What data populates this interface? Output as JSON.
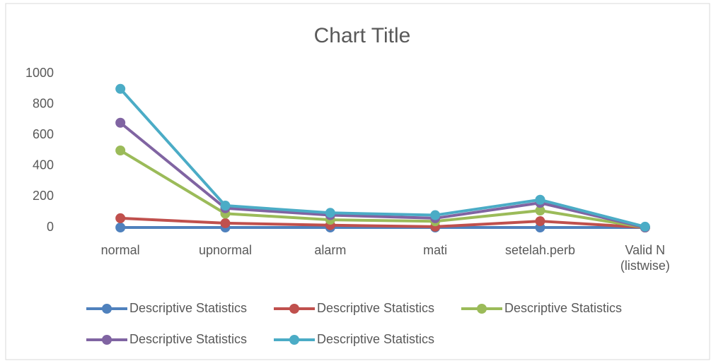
{
  "chart_data": {
    "type": "line",
    "title": "Chart Title",
    "categories": [
      "normal",
      "upnormal",
      "alarm",
      "mati",
      "setelah.perb",
      "Valid N (listwise)"
    ],
    "series": [
      {
        "name": "Descriptive Statistics",
        "color": "#4f81bd",
        "values": [
          0,
          0,
          0,
          0,
          0,
          0
        ]
      },
      {
        "name": "Descriptive Statistics",
        "color": "#c0504d",
        "values": [
          60,
          28,
          15,
          5,
          41,
          0
        ]
      },
      {
        "name": "Descriptive Statistics",
        "color": "#9bbb59",
        "values": [
          500,
          90,
          50,
          40,
          110,
          0
        ]
      },
      {
        "name": "Descriptive Statistics",
        "color": "#8064a2",
        "values": [
          680,
          125,
          80,
          60,
          160,
          0
        ]
      },
      {
        "name": "Descriptive Statistics",
        "color": "#4bacc6",
        "values": [
          900,
          142,
          95,
          80,
          180,
          5
        ]
      }
    ],
    "ylim": [
      0,
      1000
    ],
    "yticks": [
      0,
      200,
      400,
      600,
      800,
      1000
    ],
    "grid": false,
    "legend": "bottom"
  }
}
